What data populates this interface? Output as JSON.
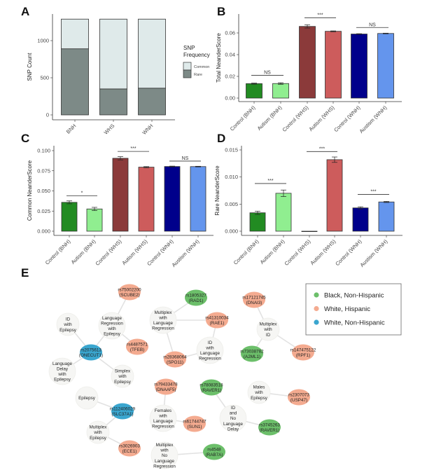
{
  "panel_labels": [
    "A",
    "B",
    "C",
    "D",
    "E"
  ],
  "chart_data": [
    {
      "panel": "A",
      "type": "bar",
      "stacked": true,
      "categories": [
        "BNH",
        "WHS",
        "WNH"
      ],
      "series": [
        {
          "name": "Rare",
          "values": [
            890,
            350,
            360
          ],
          "color": "#7d8a87"
        },
        {
          "name": "Common",
          "values": [
            400,
            940,
            930
          ],
          "color": "#dfeaea"
        }
      ],
      "xlabel": "",
      "ylabel": "SNP Count",
      "ylim": [
        0,
        1300
      ],
      "yticks": [
        0,
        500,
        1000
      ],
      "ytick_labels": [
        "0",
        "500",
        "1000"
      ],
      "legend": {
        "title_lines": [
          "SNP",
          "Frequency"
        ],
        "entries": [
          "Common",
          "Rare"
        ],
        "placement": "right"
      },
      "grid": false
    },
    {
      "panel": "B",
      "type": "bar",
      "categories": [
        "Control (BNH)",
        "Autism (BNH)",
        "Control (WHS)",
        "Autism (WHS)",
        "Control (WNH)",
        "Austism (WNH)"
      ],
      "values": [
        0.0133,
        0.0134,
        0.066,
        0.0615,
        0.059,
        0.0595
      ],
      "errors": [
        0.0005,
        0.0007,
        0.0015,
        0.0004,
        0.0003,
        0.0003
      ],
      "colors": [
        "#228b22",
        "#90ee90",
        "#8b3a3a",
        "#cd5c5c",
        "#00008b",
        "#6495ed"
      ],
      "ylabel": "Total NeanderScore",
      "ylim": [
        0,
        0.075
      ],
      "yticks": [
        0,
        0.02,
        0.04,
        0.06
      ],
      "ytick_labels": [
        "0.00",
        "0.02",
        "0.04",
        "0.06"
      ],
      "significance": [
        {
          "pair": [
            0,
            1
          ],
          "label": "NS",
          "y": 0.021
        },
        {
          "pair": [
            2,
            3
          ],
          "label": "***",
          "y": 0.074
        },
        {
          "pair": [
            4,
            5
          ],
          "label": "NS",
          "y": 0.065
        }
      ],
      "grid": false
    },
    {
      "panel": "C",
      "type": "bar",
      "categories": [
        "Control (BNH)",
        "Autism (BNH)",
        "Control (WHS)",
        "Autism (WHS)",
        "Control (WNH)",
        "Austism (WNH)"
      ],
      "values": [
        0.0358,
        0.0276,
        0.0905,
        0.0795,
        0.0803,
        0.0802
      ],
      "errors": [
        0.0018,
        0.002,
        0.002,
        0.0007,
        0.0005,
        0.0004
      ],
      "colors": [
        "#228b22",
        "#90ee90",
        "#8b3a3a",
        "#cd5c5c",
        "#00008b",
        "#6495ed"
      ],
      "ylabel": "Common NeanderScore",
      "ylim": [
        0,
        0.1
      ],
      "yticks": [
        0,
        0.025,
        0.05,
        0.075,
        0.1
      ],
      "ytick_labels": [
        "0.000",
        "0.025",
        "0.050",
        "0.075",
        "0.100"
      ],
      "significance": [
        {
          "pair": [
            0,
            1
          ],
          "label": "*",
          "y": 0.044
        },
        {
          "pair": [
            2,
            3
          ],
          "label": "***",
          "y": 0.099
        },
        {
          "pair": [
            4,
            5
          ],
          "label": "NS",
          "y": 0.087
        }
      ],
      "grid": false
    },
    {
      "panel": "D",
      "type": "bar",
      "categories": [
        "Control (BNH)",
        "Autism (BNH)",
        "Control (WHS)",
        "Autism (WHS)",
        "Control (WNH)",
        "Austism (WNH)"
      ],
      "values": [
        0.0034,
        0.007,
        0.0,
        0.0132,
        0.0043,
        0.0054
      ],
      "errors": [
        0.0003,
        0.0006,
        0.0,
        0.0005,
        0.0002,
        0.0001
      ],
      "colors": [
        "#228b22",
        "#90ee90",
        "#8b3a3a",
        "#cd5c5c",
        "#00008b",
        "#6495ed"
      ],
      "ylabel": "Rare NeanderScore",
      "ylim": [
        0,
        0.015
      ],
      "yticks": [
        0,
        0.005,
        0.01,
        0.015
      ],
      "ytick_labels": [
        "0.000",
        "0.005",
        "0.010",
        "0.015"
      ],
      "significance": [
        {
          "pair": [
            0,
            1
          ],
          "label": "***",
          "y": 0.0088
        },
        {
          "pair": [
            2,
            3
          ],
          "label": "***",
          "y": 0.0147
        },
        {
          "pair": [
            4,
            5
          ],
          "label": "***",
          "y": 0.0068
        }
      ],
      "grid": false
    }
  ],
  "network": {
    "legend": [
      {
        "label": "Black, Non-Hispanic",
        "color": "#6cbf6a"
      },
      {
        "label": "White, Hispanic",
        "color": "#f4ab90"
      },
      {
        "label": "White, Non-Hispanic",
        "color": "#3aa6cf"
      }
    ],
    "phenotype_color": "#f6f6f4",
    "nodes": [
      {
        "id": "scube2",
        "group": 1,
        "lines": [
          "rs75002200",
          "(SCUBE2)"
        ]
      },
      {
        "id": "id_epi",
        "group": -1,
        "lines": [
          "ID",
          "with",
          "Epilepsy"
        ]
      },
      {
        "id": "langreg_epi",
        "group": -1,
        "lines": [
          "Language",
          "Regression",
          "with",
          "Epilepsy"
        ]
      },
      {
        "id": "tfeb",
        "group": 1,
        "lines": [
          "rs4487571",
          "(TFEB)"
        ]
      },
      {
        "id": "onecut1",
        "group": 2,
        "lines": [
          "rs2075613",
          "(ONECUT1)"
        ]
      },
      {
        "id": "langdelay_epi",
        "group": -1,
        "lines": [
          "Language",
          "Delay",
          "with",
          "Epilepsy"
        ]
      },
      {
        "id": "simplex_epi",
        "group": -1,
        "lines": [
          "Simplex",
          "with",
          "Epilepsy"
        ]
      },
      {
        "id": "rad1",
        "group": 0,
        "lines": [
          "rs1805327",
          "(RAD1)"
        ]
      },
      {
        "id": "mult_langreg",
        "group": -1,
        "lines": [
          "Multiplex",
          "with",
          "Language",
          "Regression"
        ]
      },
      {
        "id": "rae1",
        "group": 1,
        "lines": [
          "rs41310034",
          "(RAE1)"
        ]
      },
      {
        "id": "id_langreg",
        "group": -1,
        "lines": [
          "ID",
          "with",
          "Language",
          "Regression"
        ]
      },
      {
        "id": "spo11",
        "group": 1,
        "lines": [
          "rs28368064",
          "(SPO11)"
        ]
      },
      {
        "id": "dnai3",
        "group": 1,
        "lines": [
          "rs17121745",
          "(DNAI3)"
        ]
      },
      {
        "id": "mult_id",
        "group": -1,
        "lines": [
          "Multiplex",
          "with",
          "ID"
        ]
      },
      {
        "id": "a2ml1",
        "group": 0,
        "lines": [
          "rs73038782",
          "(A2ML1)"
        ]
      },
      {
        "id": "rpf1",
        "group": 1,
        "lines": [
          "rs147475122",
          "(RPF1)"
        ]
      },
      {
        "id": "dnaaf5",
        "group": 1,
        "lines": [
          "rs79433478",
          "(DNAAF5)"
        ]
      },
      {
        "id": "raver1a",
        "group": 0,
        "lines": [
          "rs78083518",
          "(RAVER1)"
        ]
      },
      {
        "id": "males_epi",
        "group": -1,
        "lines": [
          "Males",
          "with",
          "Epilepsy"
        ]
      },
      {
        "id": "usp47",
        "group": 1,
        "lines": [
          "rs2307073",
          "(USP47)"
        ]
      },
      {
        "id": "fem_langreg",
        "group": -1,
        "lines": [
          "Females",
          "with",
          "Language",
          "Regression"
        ]
      },
      {
        "id": "sun1",
        "group": 1,
        "lines": [
          "rs61744747",
          "(SUN1)"
        ]
      },
      {
        "id": "id_nold",
        "group": -1,
        "lines": [
          "ID",
          "and",
          "No",
          "Language",
          "Delay"
        ]
      },
      {
        "id": "raver1b",
        "group": 0,
        "lines": [
          "rs3745263",
          "(RAVER1)"
        ]
      },
      {
        "id": "mult_nolangreg",
        "group": -1,
        "lines": [
          "Multiplex",
          "with",
          "No",
          "Language",
          "Regression"
        ]
      },
      {
        "id": "rab7a",
        "group": 0,
        "lines": [
          "rs4548",
          "(RAB7A)"
        ]
      },
      {
        "id": "epilepsy",
        "group": -1,
        "lines": [
          "Epilepsy"
        ]
      },
      {
        "id": "slc37a1",
        "group": 2,
        "lines": [
          "rs112406029",
          "(SLC37A1)"
        ]
      },
      {
        "id": "mult_epi",
        "group": -1,
        "lines": [
          "Multiplex",
          "with",
          "Epilepsy"
        ]
      },
      {
        "id": "ece1",
        "group": 1,
        "lines": [
          "rs3026903",
          "(ECE1)"
        ]
      }
    ],
    "edges": [
      [
        "scube2",
        "langreg_epi"
      ],
      [
        "langreg_epi",
        "tfeb"
      ],
      [
        "langreg_epi",
        "onecut1"
      ],
      [
        "id_epi",
        "onecut1"
      ],
      [
        "langdelay_epi",
        "onecut1"
      ],
      [
        "simplex_epi",
        "onecut1"
      ],
      [
        "rad1",
        "mult_langreg"
      ],
      [
        "mult_langreg",
        "rae1"
      ],
      [
        "mult_langreg",
        "spo11"
      ],
      [
        "rae1",
        "id_langreg"
      ],
      [
        "id_langreg",
        "spo11"
      ],
      [
        "dnai3",
        "mult_id"
      ],
      [
        "mult_id",
        "a2ml1"
      ],
      [
        "mult_id",
        "rpf1"
      ],
      [
        "dnaaf5",
        "fem_langreg"
      ],
      [
        "fem_langreg",
        "sun1"
      ],
      [
        "raver1a",
        "id_nold"
      ],
      [
        "id_nold",
        "raver1b"
      ],
      [
        "males_epi",
        "usp47"
      ],
      [
        "mult_nolangreg",
        "rab7a"
      ],
      [
        "epilepsy",
        "slc37a1"
      ],
      [
        "slc37a1",
        "mult_epi"
      ],
      [
        "mult_epi",
        "ece1"
      ]
    ]
  }
}
